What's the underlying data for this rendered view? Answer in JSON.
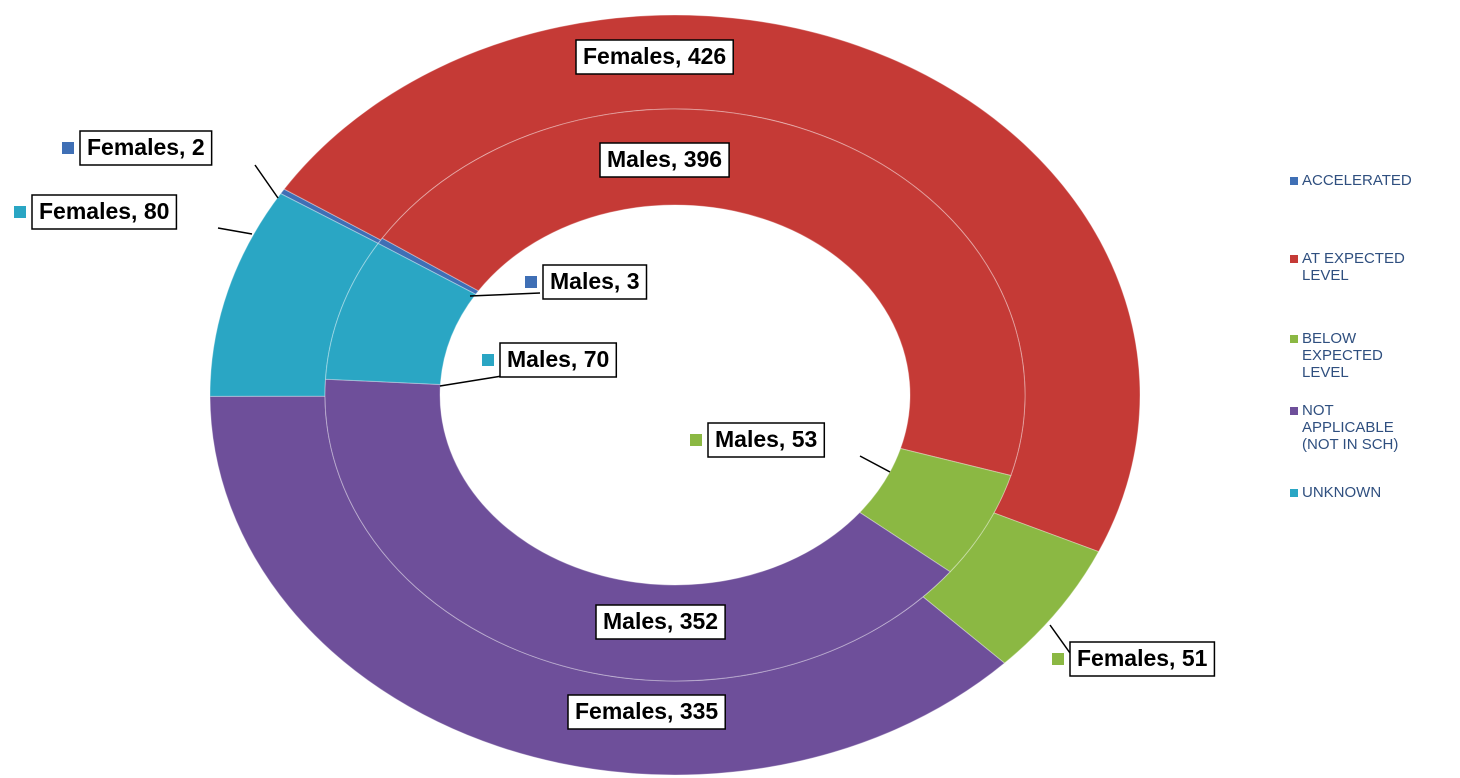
{
  "chart_data": {
    "type": "doughnut",
    "categories": [
      "ACCELERATED",
      "AT EXPECTED LEVEL",
      "BELOW EXPECTED LEVEL",
      "NOT APPLICABLE (NOT IN SCH)",
      "UNKNOWN"
    ],
    "colors": [
      "#3f6fb5",
      "#c53a36",
      "#8bb843",
      "#6e4f9a",
      "#2aa6c4"
    ],
    "series": [
      {
        "name": "Females",
        "values": [
          2,
          426,
          51,
          335,
          80
        ],
        "value_labels": [
          "Females, 2",
          "Females, 426",
          "Females, 51",
          "Females, 335",
          "Females, 80"
        ]
      },
      {
        "name": "Males",
        "values": [
          3,
          396,
          53,
          352,
          70
        ],
        "value_labels": [
          "Males, 3",
          "Males, 396",
          "Males, 53",
          "Males, 352",
          "Males, 70"
        ]
      }
    ],
    "legend": "right"
  }
}
